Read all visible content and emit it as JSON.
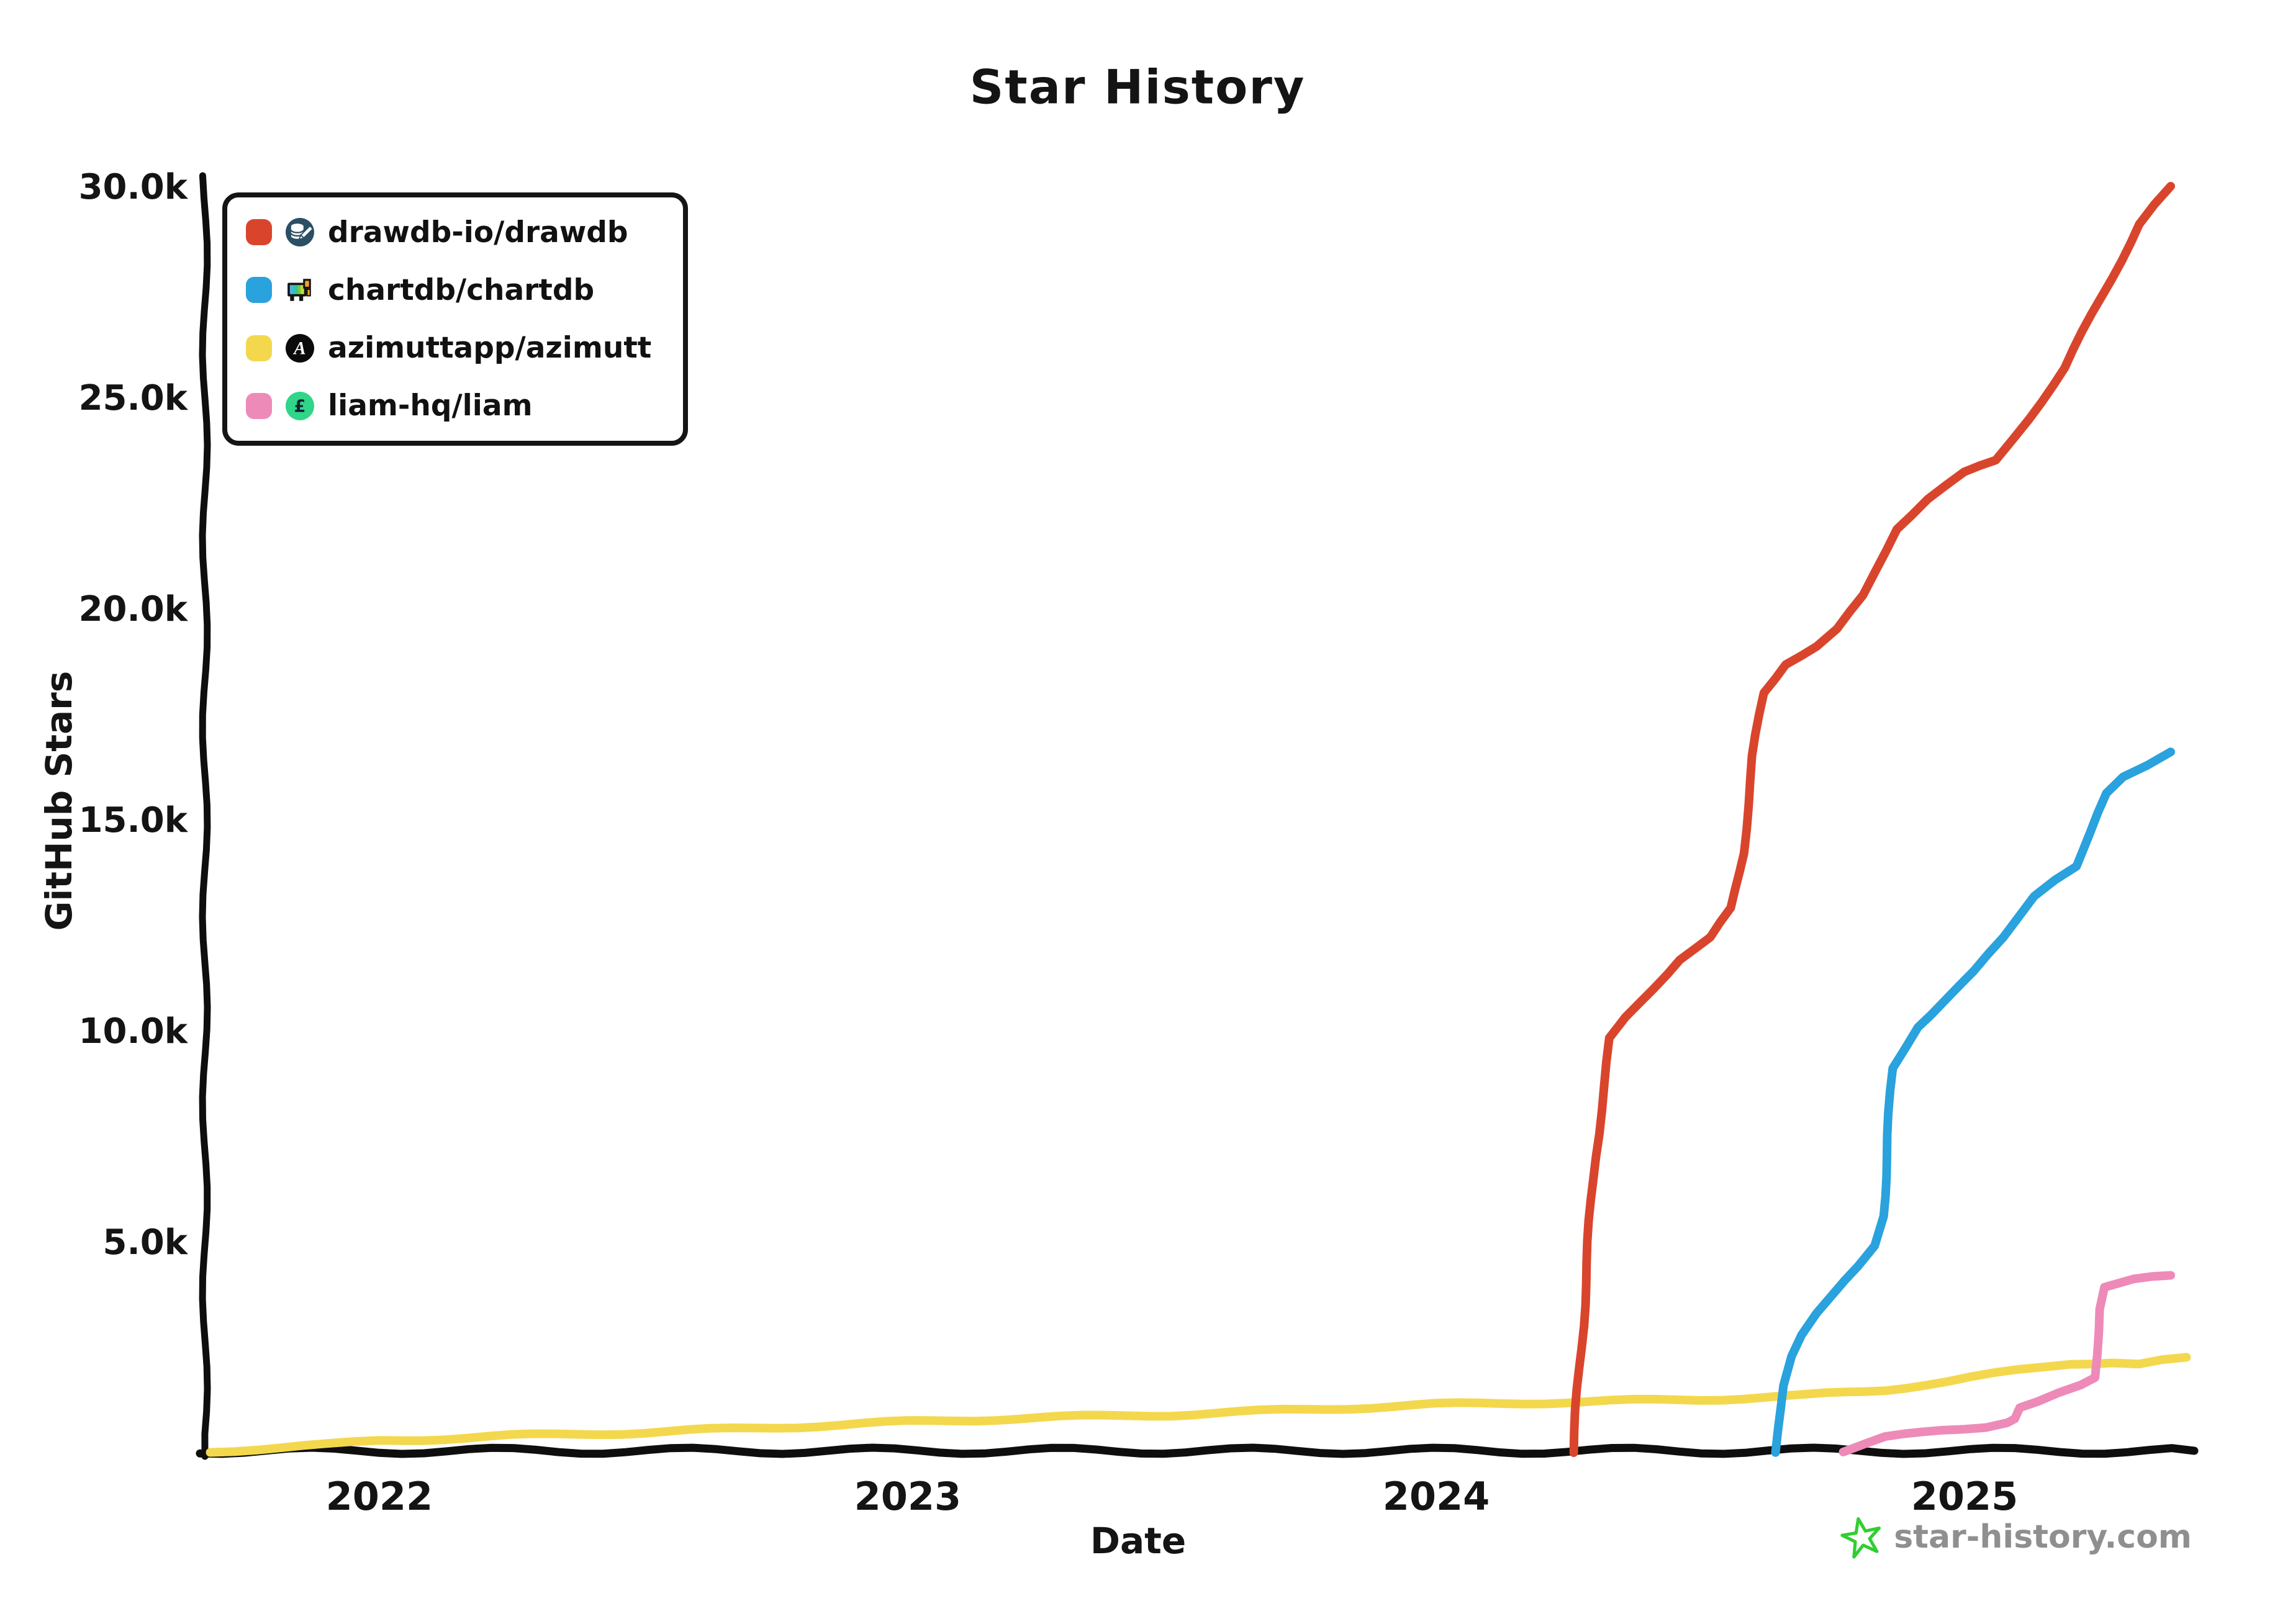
{
  "title": "Star History",
  "axes": {
    "x_label": "Date",
    "y_label": "GitHub Stars"
  },
  "watermark": {
    "text": "star-history.com",
    "star_color": "#2fcf2f"
  },
  "legend": {
    "items": [
      {
        "label": "drawdb-io/drawdb",
        "color": "#d9452c",
        "icon": "drawdb-icon"
      },
      {
        "label": "chartdb/chartdb",
        "color": "#29a2dd",
        "icon": "chartdb-icon"
      },
      {
        "label": "azimuttapp/azimutt",
        "color": "#f3d84d",
        "icon": "azimutt-icon"
      },
      {
        "label": "liam-hq/liam",
        "color": "#ee8ab8",
        "icon": "liam-icon"
      }
    ]
  },
  "chart_data": {
    "type": "line",
    "title": "Star History",
    "xlabel": "Date",
    "ylabel": "GitHub Stars",
    "xlim": [
      2021.67,
      2025.43
    ],
    "ylim": [
      0,
      30000
    ],
    "grid": false,
    "legend_position": "top-left",
    "x_ticks": [
      {
        "value": 2022,
        "label": "2022"
      },
      {
        "value": 2023,
        "label": "2023"
      },
      {
        "value": 2024,
        "label": "2024"
      },
      {
        "value": 2025,
        "label": "2025"
      }
    ],
    "y_ticks": [
      {
        "value": 5000,
        "label": "5.0k"
      },
      {
        "value": 10000,
        "label": "10.0k"
      },
      {
        "value": 15000,
        "label": "15.0k"
      },
      {
        "value": 20000,
        "label": "20.0k"
      },
      {
        "value": 25000,
        "label": "25.0k"
      },
      {
        "value": 30000,
        "label": "30.0k"
      }
    ],
    "series": [
      {
        "name": "drawdb-io/drawdb",
        "color": "#d9452c",
        "points": [
          [
            2024.26,
            0
          ],
          [
            2024.28,
            3500
          ],
          [
            2024.3,
            7000
          ],
          [
            2024.33,
            9800
          ],
          [
            2024.36,
            10300
          ],
          [
            2024.46,
            11700
          ],
          [
            2024.52,
            12200
          ],
          [
            2024.56,
            12900
          ],
          [
            2024.58,
            14200
          ],
          [
            2024.6,
            16500
          ],
          [
            2024.62,
            18000
          ],
          [
            2024.66,
            18700
          ],
          [
            2024.72,
            19100
          ],
          [
            2024.76,
            19500
          ],
          [
            2024.81,
            20300
          ],
          [
            2024.87,
            21900
          ],
          [
            2024.93,
            22600
          ],
          [
            2025.0,
            23200
          ],
          [
            2025.06,
            23500
          ],
          [
            2025.12,
            24500
          ],
          [
            2025.19,
            25700
          ],
          [
            2025.26,
            27400
          ],
          [
            2025.33,
            29100
          ],
          [
            2025.39,
            30000
          ]
        ]
      },
      {
        "name": "chartdb/chartdb",
        "color": "#29a2dd",
        "points": [
          [
            2024.645,
            0
          ],
          [
            2024.655,
            1600
          ],
          [
            2024.67,
            2300
          ],
          [
            2024.69,
            2800
          ],
          [
            2024.72,
            3300
          ],
          [
            2024.75,
            3700
          ],
          [
            2024.8,
            4400
          ],
          [
            2024.83,
            4900
          ],
          [
            2024.845,
            5600
          ],
          [
            2024.855,
            7500
          ],
          [
            2024.865,
            9100
          ],
          [
            2024.91,
            10100
          ],
          [
            2024.96,
            10700
          ],
          [
            2025.02,
            11400
          ],
          [
            2025.075,
            12200
          ],
          [
            2025.13,
            13200
          ],
          [
            2025.17,
            13600
          ],
          [
            2025.21,
            13900
          ],
          [
            2025.24,
            14700
          ],
          [
            2025.27,
            15600
          ],
          [
            2025.3,
            16000
          ],
          [
            2025.39,
            16600
          ]
        ]
      },
      {
        "name": "azimuttapp/azimutt",
        "color": "#f3d84d",
        "points": [
          [
            2021.68,
            30
          ],
          [
            2021.9,
            180
          ],
          [
            2022.0,
            280
          ],
          [
            2022.25,
            400
          ],
          [
            2022.5,
            480
          ],
          [
            2022.75,
            600
          ],
          [
            2023.0,
            730
          ],
          [
            2023.25,
            830
          ],
          [
            2023.5,
            900
          ],
          [
            2023.75,
            1020
          ],
          [
            2024.0,
            1140
          ],
          [
            2024.25,
            1200
          ],
          [
            2024.5,
            1260
          ],
          [
            2024.7,
            1350
          ],
          [
            2024.85,
            1500
          ],
          [
            2024.97,
            1680
          ],
          [
            2025.1,
            1950
          ],
          [
            2025.2,
            2120
          ],
          [
            2025.28,
            2150
          ],
          [
            2025.33,
            2100
          ],
          [
            2025.42,
            2260
          ]
        ]
      },
      {
        "name": "liam-hq/liam",
        "color": "#ee8ab8",
        "points": [
          [
            2024.77,
            30
          ],
          [
            2024.85,
            350
          ],
          [
            2024.96,
            540
          ],
          [
            2025.04,
            630
          ],
          [
            2025.08,
            730
          ],
          [
            2025.095,
            800
          ],
          [
            2025.105,
            1040
          ],
          [
            2025.14,
            1180
          ],
          [
            2025.18,
            1400
          ],
          [
            2025.22,
            1600
          ],
          [
            2025.245,
            1780
          ],
          [
            2025.255,
            3400
          ],
          [
            2025.265,
            3900
          ],
          [
            2025.32,
            4080
          ],
          [
            2025.39,
            4200
          ]
        ]
      }
    ]
  }
}
